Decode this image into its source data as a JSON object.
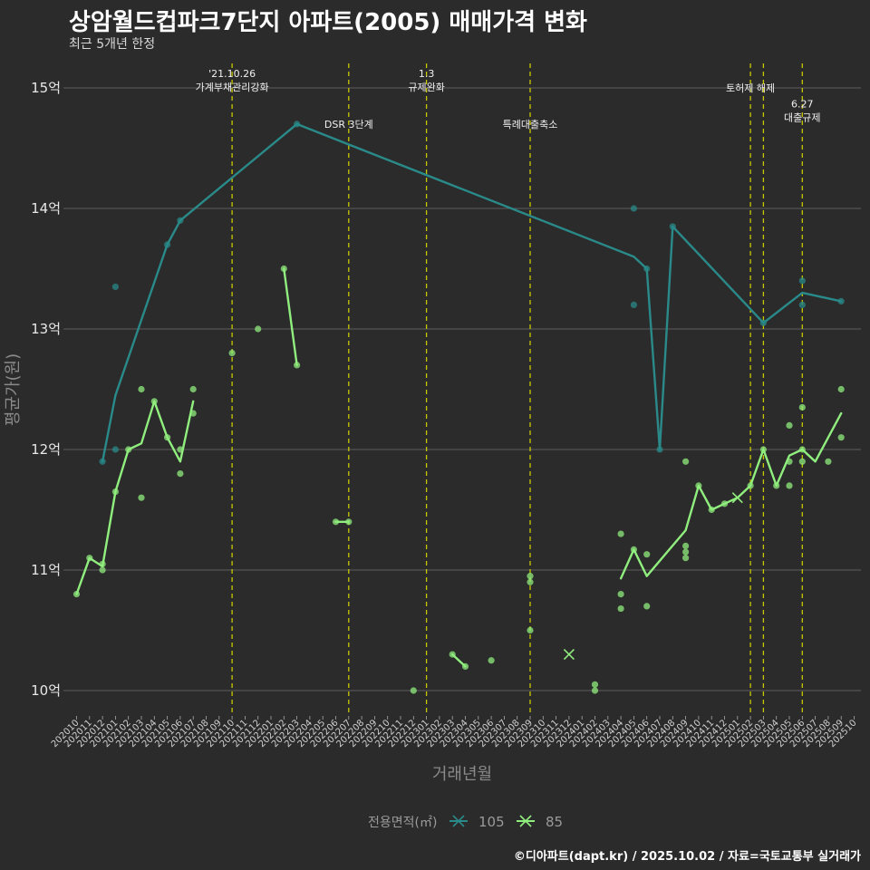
{
  "title": "상암월드컵파크7단지 아파트(2005) 매매가격 변화",
  "subtitle": "최근 5개년 한정",
  "caption": "©디아파트(dapt.kr) / 2025.10.02 / 자료=국토교통부 실거래가",
  "colors": {
    "background": "#2b2b2b",
    "grid": "#5e5e5e",
    "s105": "#2a8a8a",
    "s85": "#90ee7e",
    "vline": "#c8c800"
  },
  "chart_data": {
    "type": "line",
    "xlabel": "거래년월",
    "ylabel": "평균가(원)",
    "ylim": [
      9.8,
      15.2
    ],
    "yticks": [
      {
        "v": 10,
        "label": "10억"
      },
      {
        "v": 11,
        "label": "11억"
      },
      {
        "v": 12,
        "label": "12억"
      },
      {
        "v": 13,
        "label": "13억"
      },
      {
        "v": 14,
        "label": "14억"
      },
      {
        "v": 15,
        "label": "15억"
      }
    ],
    "xticks": [
      "202010",
      "202011",
      "202012",
      "202101",
      "202102",
      "202103",
      "202104",
      "202105",
      "202106",
      "202107",
      "202108",
      "202109",
      "202110",
      "202111",
      "202112",
      "202201",
      "202202",
      "202203",
      "202204",
      "202205",
      "202206",
      "202207",
      "202208",
      "202209",
      "202210",
      "202211",
      "202212",
      "202301",
      "202302",
      "202303",
      "202304",
      "202305",
      "202306",
      "202307",
      "202308",
      "202309",
      "202310",
      "202311",
      "202312",
      "202401",
      "202402",
      "202403",
      "202404",
      "202405",
      "202406",
      "202407",
      "202408",
      "202409",
      "202410",
      "202411",
      "202412",
      "202501",
      "202502",
      "202503",
      "202504",
      "202505",
      "202506",
      "202507",
      "202508",
      "202509",
      "202510"
    ],
    "legend_title": "전용면적(㎡)",
    "series": [
      {
        "name": "105",
        "color": "#2a8a8a",
        "points": [
          [
            2,
            11.9
          ],
          [
            3,
            12.0
          ],
          [
            3,
            13.35
          ],
          [
            7,
            13.7
          ],
          [
            8,
            13.9
          ],
          [
            17,
            14.7
          ],
          [
            43,
            14.0
          ],
          [
            43,
            13.2
          ],
          [
            44,
            13.5
          ],
          [
            45,
            12.0
          ],
          [
            46,
            13.85
          ],
          [
            53,
            13.05
          ],
          [
            56,
            13.4
          ],
          [
            56,
            13.2
          ],
          [
            59,
            13.23
          ]
        ],
        "line": [
          [
            2,
            11.9
          ],
          [
            3,
            12.45
          ],
          [
            7,
            13.7
          ],
          [
            8,
            13.9
          ],
          [
            17,
            14.7
          ],
          [
            43,
            13.6
          ],
          [
            44,
            13.5
          ],
          [
            45,
            12.0
          ],
          [
            46,
            13.85
          ],
          [
            53,
            13.05
          ],
          [
            56,
            13.3
          ],
          [
            59,
            13.23
          ]
        ],
        "cross": []
      },
      {
        "name": "85",
        "color": "#90ee7e",
        "points": [
          [
            0,
            10.8
          ],
          [
            1,
            11.1
          ],
          [
            2,
            11.05
          ],
          [
            2,
            11.0
          ],
          [
            3,
            11.65
          ],
          [
            4,
            12.0
          ],
          [
            5,
            12.5
          ],
          [
            5,
            11.6
          ],
          [
            6,
            12.4
          ],
          [
            7,
            12.1
          ],
          [
            8,
            12.0
          ],
          [
            8,
            11.8
          ],
          [
            9,
            12.5
          ],
          [
            9,
            12.3
          ],
          [
            12,
            12.8
          ],
          [
            14,
            13.0
          ],
          [
            16,
            13.5
          ],
          [
            17,
            12.7
          ],
          [
            20,
            11.4
          ],
          [
            21,
            11.4
          ],
          [
            26,
            10.0
          ],
          [
            29,
            10.3
          ],
          [
            30,
            10.2
          ],
          [
            32,
            10.25
          ],
          [
            35,
            10.95
          ],
          [
            35,
            10.9
          ],
          [
            35,
            10.5
          ],
          [
            40,
            10.05
          ],
          [
            40,
            10.0
          ],
          [
            42,
            11.3
          ],
          [
            42,
            10.8
          ],
          [
            42,
            10.68
          ],
          [
            43,
            11.17
          ],
          [
            44,
            11.13
          ],
          [
            44,
            10.7
          ],
          [
            47,
            11.9
          ],
          [
            47,
            11.2
          ],
          [
            47,
            11.15
          ],
          [
            47,
            11.1
          ],
          [
            48,
            11.7
          ],
          [
            49,
            11.5
          ],
          [
            50,
            11.55
          ],
          [
            52,
            11.7
          ],
          [
            53,
            12.0
          ],
          [
            54,
            11.7
          ],
          [
            55,
            12.2
          ],
          [
            55,
            11.9
          ],
          [
            55,
            11.7
          ],
          [
            56,
            12.35
          ],
          [
            56,
            12.0
          ],
          [
            56,
            11.9
          ],
          [
            58,
            11.9
          ],
          [
            59,
            12.5
          ],
          [
            59,
            12.1
          ]
        ],
        "lines": [
          [
            [
              0,
              10.8
            ],
            [
              1,
              11.1
            ],
            [
              2,
              11.03
            ],
            [
              3,
              11.65
            ],
            [
              4,
              12.0
            ],
            [
              5,
              12.05
            ],
            [
              6,
              12.4
            ],
            [
              7,
              12.1
            ],
            [
              8,
              11.9
            ],
            [
              9,
              12.4
            ]
          ],
          [
            [
              16,
              13.5
            ],
            [
              17,
              12.7
            ]
          ],
          [
            [
              20,
              11.4
            ],
            [
              21,
              11.4
            ]
          ],
          [
            [
              29,
              10.3
            ],
            [
              30,
              10.2
            ]
          ],
          [
            [
              42,
              10.93
            ],
            [
              43,
              11.17
            ],
            [
              44,
              10.95
            ],
            [
              47,
              11.33
            ],
            [
              48,
              11.7
            ],
            [
              49,
              11.5
            ],
            [
              50,
              11.55
            ],
            [
              51,
              11.6
            ],
            [
              52,
              11.7
            ],
            [
              53,
              12.0
            ],
            [
              54,
              11.7
            ],
            [
              55,
              11.95
            ],
            [
              56,
              12.0
            ],
            [
              57,
              11.9
            ],
            [
              59,
              12.3
            ]
          ]
        ],
        "cross": [
          [
            38,
            10.3
          ],
          [
            51,
            11.6
          ]
        ]
      }
    ],
    "vlines": [
      {
        "x": 12,
        "label": "'21.10.26\n가계부채관리강화",
        "label_y": 15.0
      },
      {
        "x": 21,
        "label": "DSR 3단계",
        "label_y": 14.67
      },
      {
        "x": 27,
        "label": "1.3\n규제완화",
        "label_y": 15.0
      },
      {
        "x": 35,
        "label": "특례대출축소",
        "label_y": 14.67
      },
      {
        "x": 52,
        "label": "토허제 해제",
        "label_y": 14.97
      },
      {
        "x": 53,
        "label": "",
        "label_y": 0
      },
      {
        "x": 56,
        "label": "6.27\n대출규제",
        "label_y": 14.75
      }
    ]
  }
}
